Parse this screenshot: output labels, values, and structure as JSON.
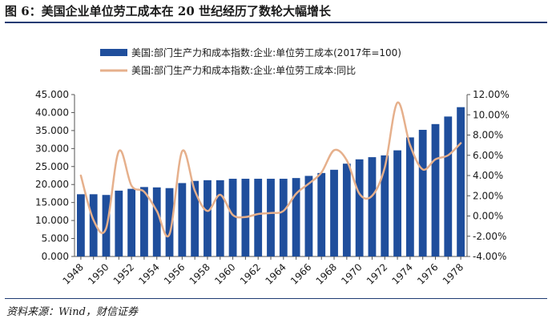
{
  "figure": {
    "title": "图 6：美国企业单位劳工成本在 20 世纪经历了数轮大幅增长",
    "source": "资料来源：Wind，财信证券",
    "source_parts": [
      "资料来源：Wind",
      "财信证券"
    ]
  },
  "colors": {
    "bar": "#1f4e9c",
    "line": "#e6b08c",
    "rule": "#1f3b73"
  },
  "chart_data": {
    "type": "bar",
    "x": [
      1948,
      1949,
      1950,
      1951,
      1952,
      1953,
      1954,
      1955,
      1956,
      1957,
      1958,
      1959,
      1960,
      1961,
      1962,
      1963,
      1964,
      1965,
      1966,
      1967,
      1968,
      1969,
      1970,
      1971,
      1972,
      1973,
      1974,
      1975,
      1976,
      1977,
      1978
    ],
    "x_tick_labels": [
      "1948",
      "1950",
      "1952",
      "1954",
      "1956",
      "1958",
      "1960",
      "1962",
      "1964",
      "1966",
      "1968",
      "1970",
      "1972",
      "1974",
      "1976",
      "1978"
    ],
    "series": [
      {
        "name": "美国:部门生产力和成本指数:企业:单位劳工成本(2017年=100)",
        "type": "bar",
        "axis": "left",
        "values": [
          17.3,
          17.3,
          17.1,
          18.3,
          18.8,
          19.3,
          19.2,
          19.0,
          20.4,
          21.0,
          21.2,
          21.2,
          21.6,
          21.6,
          21.6,
          21.6,
          21.6,
          21.8,
          22.4,
          23.2,
          24.1,
          25.8,
          27.0,
          27.6,
          28.1,
          29.5,
          33.1,
          35.2,
          36.8,
          38.9,
          41.5
        ]
      },
      {
        "name": "美国:部门生产力和成本指数:企业:单位劳工成本:同比",
        "type": "line",
        "axis": "right",
        "values": [
          4.0,
          -0.4,
          -1.2,
          6.4,
          3.0,
          2.4,
          0.5,
          -1.8,
          6.4,
          2.5,
          0.5,
          2.1,
          0.1,
          -0.1,
          0.2,
          0.3,
          0.5,
          2.2,
          3.2,
          4.3,
          6.5,
          5.5,
          2.2,
          2.0,
          4.8,
          11.2,
          7.0,
          4.6,
          5.6,
          6.0,
          7.2
        ]
      }
    ],
    "y_left": {
      "lim": [
        0,
        45
      ],
      "ticks": [
        "0.000",
        "5.000",
        "10.000",
        "15.000",
        "20.000",
        "25.000",
        "30.000",
        "35.000",
        "40.000",
        "45.000"
      ]
    },
    "y_right": {
      "lim": [
        -4,
        12
      ],
      "ticks": [
        "-4.00%",
        "-2.00%",
        "0.00%",
        "2.00%",
        "4.00%",
        "6.00%",
        "8.00%",
        "10.00%",
        "12.00%"
      ]
    },
    "grid": false,
    "legend": "top-left"
  }
}
